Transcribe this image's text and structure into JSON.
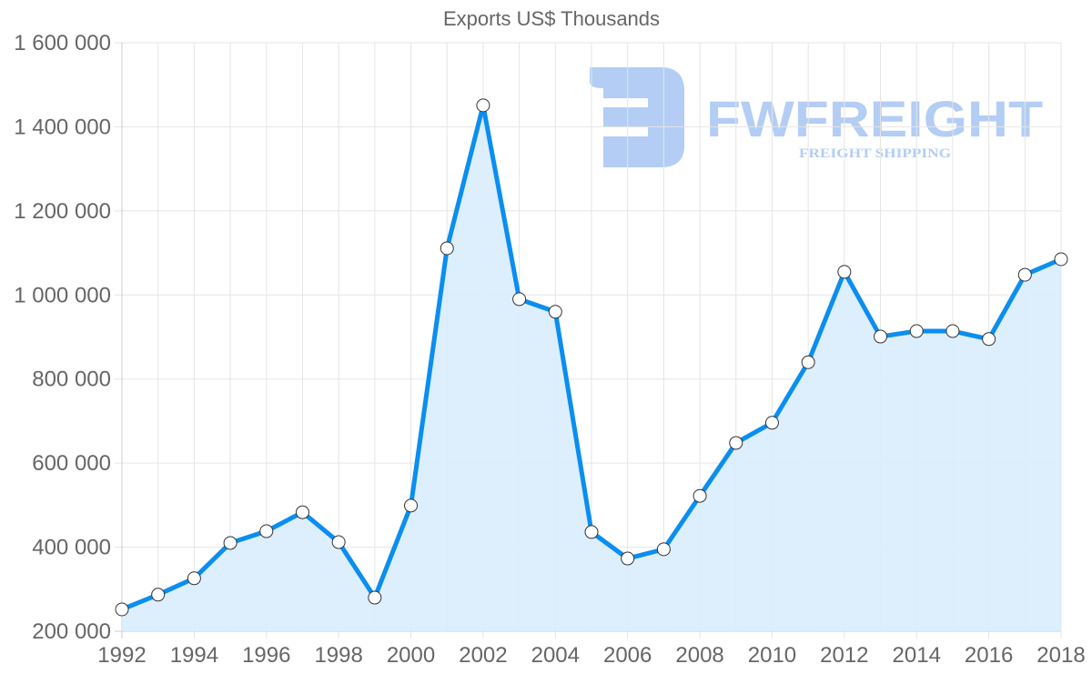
{
  "chart_data": {
    "type": "line",
    "title": "Exports US$ Thousands",
    "xlabel": "",
    "ylabel": "",
    "x": [
      1992,
      1993,
      1994,
      1995,
      1996,
      1997,
      1998,
      1999,
      2000,
      2001,
      2002,
      2003,
      2004,
      2005,
      2006,
      2007,
      2008,
      2009,
      2010,
      2011,
      2012,
      2013,
      2014,
      2015,
      2016,
      2017,
      2018
    ],
    "series": [
      {
        "name": "Exports US$ Thousands",
        "values": [
          252000,
          287000,
          326000,
          410000,
          438000,
          483000,
          412000,
          280000,
          499000,
          1111000,
          1451000,
          990000,
          960000,
          436000,
          373000,
          395000,
          522000,
          648000,
          696000,
          840000,
          1055000,
          901000,
          914000,
          914000,
          895000,
          1048000,
          1085000
        ],
        "color": "#0a8ef0",
        "fill": "#d9ecfd"
      }
    ],
    "ylim": [
      200000,
      1600000
    ],
    "yticks": [
      200000,
      400000,
      600000,
      800000,
      1000000,
      1200000,
      1400000,
      1600000
    ],
    "ytick_labels": [
      "200 000",
      "400 000",
      "600 000",
      "800 000",
      "1 000 000",
      "1 200 000",
      "1 400 000",
      "1 600 000"
    ],
    "xtick_labels": [
      "1992",
      "1994",
      "1996",
      "1998",
      "2000",
      "2002",
      "2004",
      "2006",
      "2008",
      "2010",
      "2012",
      "2014",
      "2016",
      "2018"
    ],
    "grid": true,
    "legend": "none"
  },
  "watermark": {
    "brand": "FWFREIGHT",
    "tagline": "FREIGHT SHIPPING",
    "color": "#b3cdf4"
  },
  "colors": {
    "axis_text": "#666666",
    "grid": "#e5e5e5"
  }
}
